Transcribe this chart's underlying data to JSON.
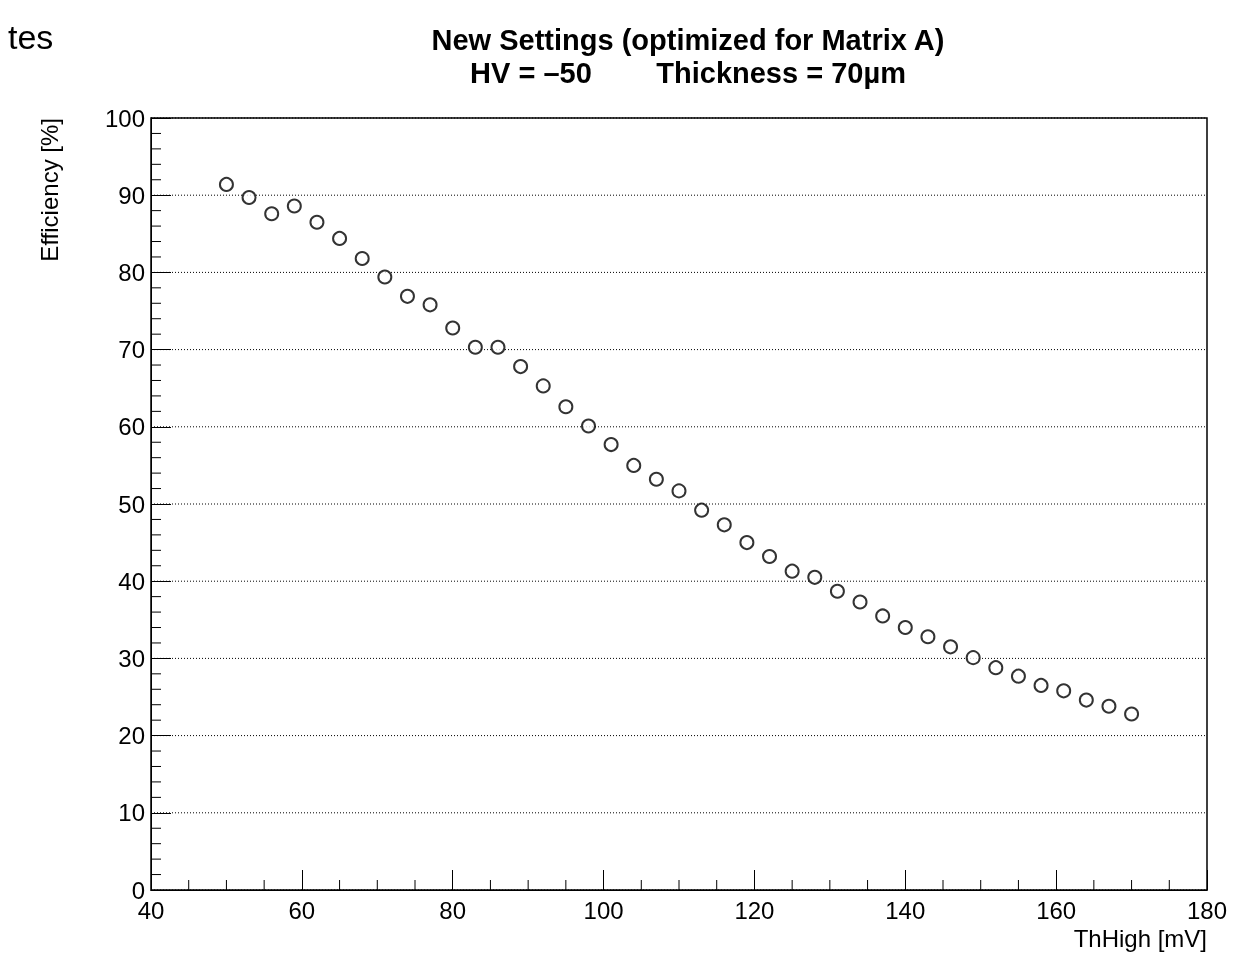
{
  "chart_data": {
    "type": "scatter",
    "title": "New Settings (optimized for Matrix A)",
    "subtitle": "HV = –50        Thickness = 70µm",
    "xlabel": "ThHigh [mV]",
    "ylabel": "Efficiency [%]",
    "annotations": [
      "tes"
    ],
    "x": [
      50,
      53,
      56,
      59,
      62,
      65,
      68,
      71,
      74,
      77,
      80,
      83,
      86,
      89,
      92,
      95,
      98,
      101,
      104,
      107,
      110,
      113,
      116,
      119,
      122,
      125,
      128,
      131,
      134,
      137,
      140,
      143,
      146,
      149,
      152,
      155,
      158,
      161,
      164,
      167,
      170
    ],
    "series": [
      {
        "color": "#000000",
        "values": [
          91.4,
          89.7,
          87.6,
          88.6,
          86.5,
          84.4,
          81.8,
          79.4,
          76.9,
          75.8,
          72.8,
          70.3,
          70.3,
          67.8,
          65.3,
          62.6,
          60.1,
          57.7,
          55.0,
          53.2,
          51.7,
          49.2,
          47.3,
          45.0,
          43.2,
          41.3,
          40.5,
          38.7,
          37.3,
          35.5,
          34.0,
          32.8,
          31.5,
          30.1,
          28.8,
          27.7,
          26.5,
          25.8,
          24.6,
          23.8,
          22.8
        ]
      }
    ],
    "xlim": [
      40,
      180
    ],
    "xticks": [
      40,
      60,
      80,
      100,
      120,
      140,
      160,
      180
    ],
    "ylim": [
      0,
      100
    ],
    "yticks": [
      0,
      10,
      20,
      30,
      40,
      50,
      60,
      70,
      80,
      90,
      100
    ],
    "grid": "y",
    "marker": "circle"
  }
}
